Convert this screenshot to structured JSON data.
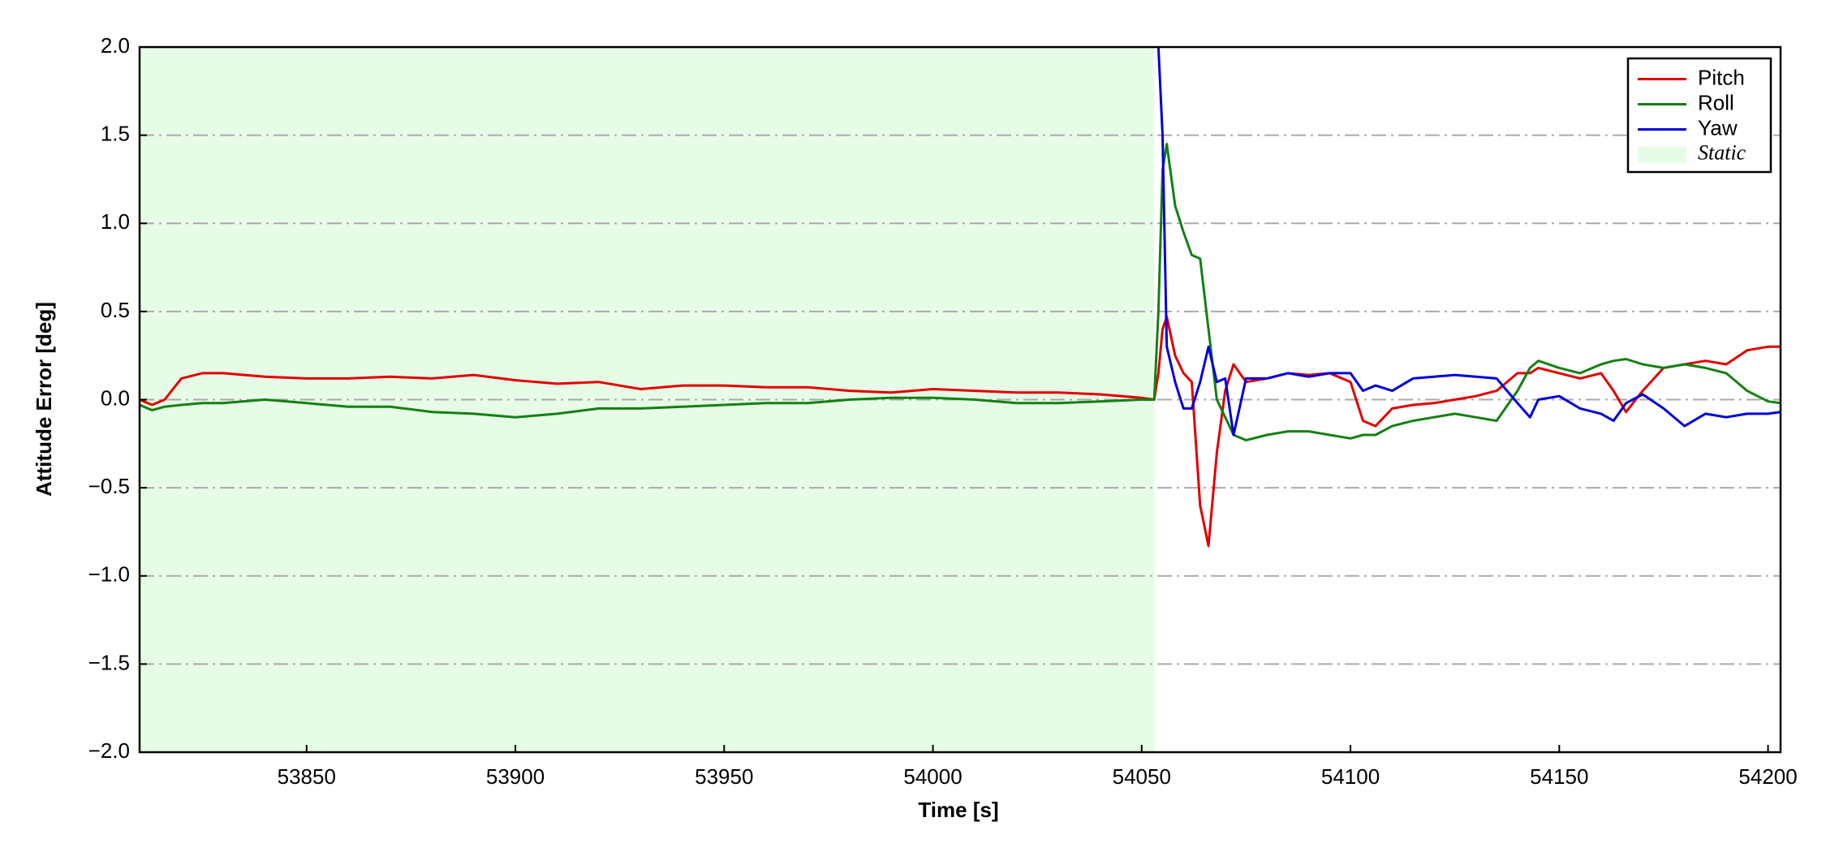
{
  "chart_data": {
    "type": "line",
    "xlabel": "Time [s]",
    "ylabel": "Attitude Error [deg]",
    "xlim": [
      53810,
      54203
    ],
    "ylim": [
      -2,
      2
    ],
    "xticks": [
      53850,
      53900,
      53950,
      54000,
      54050,
      54100,
      54150,
      54200
    ],
    "yticks": [
      {
        "value": -2,
        "label": "−2.0"
      },
      {
        "value": -1.5,
        "label": "−1.5"
      },
      {
        "value": -1,
        "label": "−1.0"
      },
      {
        "value": -0.5,
        "label": "−0.5"
      },
      {
        "value": 0,
        "label": "0.0"
      },
      {
        "value": 0.5,
        "label": "0.5"
      },
      {
        "value": 1,
        "label": "1.0"
      },
      {
        "value": 1.5,
        "label": "1.5"
      },
      {
        "value": 2,
        "label": "2.0"
      }
    ],
    "grid": true,
    "legend": "upper right",
    "spans": [
      {
        "name": "Static",
        "start": 53810,
        "end": 54053,
        "color": "#e6fce6"
      }
    ],
    "x": [
      53810,
      53813,
      53816,
      53820,
      53825,
      53830,
      53840,
      53850,
      53860,
      53870,
      53880,
      53890,
      53900,
      53910,
      53920,
      53930,
      53940,
      53950,
      53960,
      53970,
      53980,
      53990,
      54000,
      54010,
      54020,
      54030,
      54040,
      54050,
      54053,
      54054,
      54055,
      54056,
      54058,
      54060,
      54062,
      54064,
      54066,
      54068,
      54070,
      54072,
      54075,
      54080,
      54085,
      54090,
      54095,
      54100,
      54103,
      54106,
      54110,
      54115,
      54120,
      54125,
      54130,
      54135,
      54140,
      54143,
      54145,
      54150,
      54155,
      54160,
      54163,
      54166,
      54170,
      54175,
      54180,
      54185,
      54190,
      54195,
      54200,
      54203
    ],
    "series": [
      {
        "name": "Pitch",
        "color": "#e00000",
        "values": [
          0.0,
          -0.03,
          0.0,
          0.12,
          0.15,
          0.15,
          0.13,
          0.12,
          0.12,
          0.13,
          0.12,
          0.14,
          0.11,
          0.09,
          0.1,
          0.06,
          0.08,
          0.08,
          0.07,
          0.07,
          0.05,
          0.04,
          0.06,
          0.05,
          0.04,
          0.04,
          0.03,
          0.01,
          0.0,
          0.15,
          0.4,
          0.47,
          0.25,
          0.15,
          0.1,
          -0.6,
          -0.83,
          -0.3,
          0.05,
          0.2,
          0.1,
          0.12,
          0.15,
          0.14,
          0.15,
          0.1,
          -0.12,
          -0.15,
          -0.05,
          -0.03,
          -0.02,
          0.0,
          0.02,
          0.05,
          0.15,
          0.15,
          0.18,
          0.15,
          0.12,
          0.15,
          0.05,
          -0.07,
          0.05,
          0.18,
          0.2,
          0.22,
          0.2,
          0.28,
          0.3,
          0.3
        ]
      },
      {
        "name": "Roll",
        "color": "#138013",
        "values": [
          -0.03,
          -0.06,
          -0.04,
          -0.03,
          -0.02,
          -0.02,
          0.0,
          -0.02,
          -0.04,
          -0.04,
          -0.07,
          -0.08,
          -0.1,
          -0.08,
          -0.05,
          -0.05,
          -0.04,
          -0.03,
          -0.02,
          -0.02,
          0.0,
          0.01,
          0.01,
          0.0,
          -0.02,
          -0.02,
          -0.01,
          0.0,
          0.0,
          0.5,
          1.3,
          1.45,
          1.1,
          0.95,
          0.82,
          0.8,
          0.4,
          0.0,
          -0.1,
          -0.2,
          -0.23,
          -0.2,
          -0.18,
          -0.18,
          -0.2,
          -0.22,
          -0.2,
          -0.2,
          -0.15,
          -0.12,
          -0.1,
          -0.08,
          -0.1,
          -0.12,
          0.05,
          0.18,
          0.22,
          0.18,
          0.15,
          0.2,
          0.22,
          0.23,
          0.2,
          0.18,
          0.2,
          0.18,
          0.15,
          0.05,
          -0.01,
          -0.02
        ]
      },
      {
        "name": "Yaw",
        "color": "#0000d8",
        "values": [
          null,
          null,
          null,
          null,
          null,
          null,
          null,
          null,
          null,
          null,
          null,
          null,
          null,
          null,
          null,
          null,
          null,
          null,
          null,
          null,
          null,
          null,
          null,
          null,
          null,
          null,
          null,
          null,
          null,
          2.0,
          1.5,
          0.3,
          0.1,
          -0.05,
          -0.05,
          0.1,
          0.3,
          0.1,
          0.12,
          -0.2,
          0.12,
          0.12,
          0.15,
          0.13,
          0.15,
          0.15,
          0.05,
          0.08,
          0.05,
          0.12,
          0.13,
          0.14,
          0.13,
          0.12,
          -0.02,
          -0.1,
          0.0,
          0.02,
          -0.05,
          -0.08,
          -0.12,
          -0.02,
          0.03,
          -0.05,
          -0.15,
          -0.08,
          -0.1,
          -0.08,
          -0.08,
          -0.07
        ]
      }
    ]
  }
}
